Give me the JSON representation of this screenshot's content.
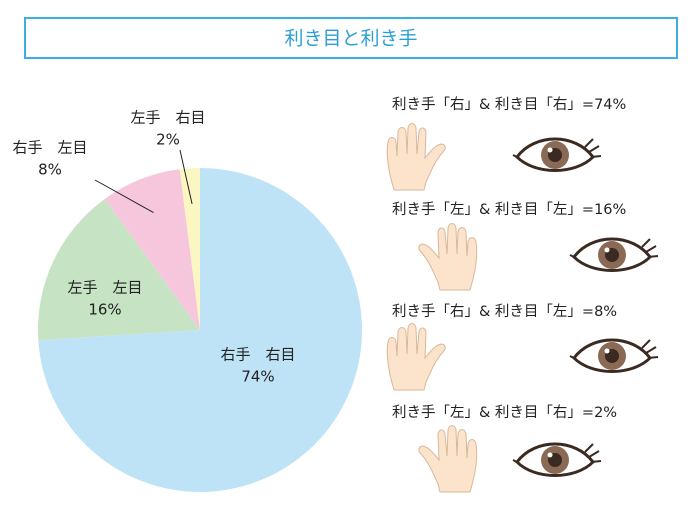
{
  "chart_data": {
    "type": "pie",
    "title": "利き目と利き手",
    "categories": [
      "右手　右目",
      "左手　左目",
      "右手　左目",
      "左手　右目"
    ],
    "values": [
      74,
      16,
      8,
      2
    ],
    "value_labels": [
      "74%",
      "16%",
      "8%",
      "2%"
    ],
    "colors": [
      "#bfe3f6",
      "#c6e3c4",
      "#f6c7dc",
      "#fbf6c2"
    ],
    "annotations": [
      "利き手「右」& 利き目「右」=74%",
      "利き手「左」& 利き目「左」=16%",
      "利き手「右」& 利き目「左」=8%",
      "利き手「左」& 利き目「右」=2%"
    ]
  }
}
